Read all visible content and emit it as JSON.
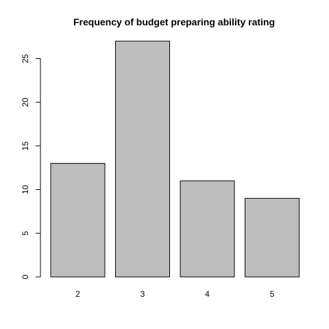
{
  "chart_data": {
    "type": "bar",
    "title": "Frequency of budget preparing ability rating",
    "xlabel": "",
    "ylabel": "",
    "categories": [
      "2",
      "3",
      "4",
      "5"
    ],
    "values": [
      13,
      27,
      11,
      9
    ],
    "ylim": [
      0,
      27
    ],
    "yticks": [
      0,
      5,
      10,
      15,
      20,
      25
    ],
    "bar_color": "#bebebe",
    "bar_border_color": "#000000",
    "grid": false,
    "legend": "none"
  }
}
